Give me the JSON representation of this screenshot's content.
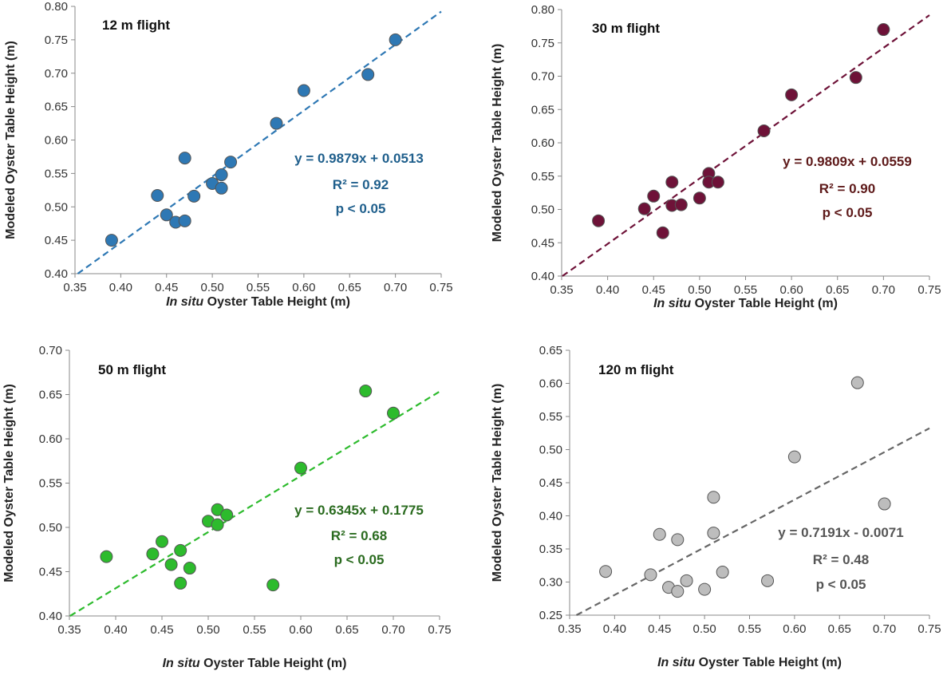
{
  "chart_data": [
    {
      "type": "scatter",
      "title": "12 m flight",
      "xlabel_italic": "In situ",
      "xlabel_rest": " Oyster Table Height (m)",
      "ylabel": "Modeled Oyster Table Height (m)",
      "xlim": [
        0.35,
        0.75
      ],
      "ylim": [
        0.4,
        0.8
      ],
      "xticks": [
        "0.35",
        "0.40",
        "0.45",
        "0.50",
        "0.55",
        "0.60",
        "0.65",
        "0.70",
        "0.75"
      ],
      "yticks": [
        "0.40",
        "0.45",
        "0.50",
        "0.55",
        "0.60",
        "0.65",
        "0.70",
        "0.75",
        "0.80"
      ],
      "color": "#2e78b4",
      "annotation_color": "#1f5f8c",
      "trend": {
        "slope": 0.9879,
        "intercept": 0.0513
      },
      "equation": "y = 0.9879x + 0.0513",
      "r2_label": "R² = 0.92",
      "p_label": "p < 0.05",
      "points": [
        {
          "x": 0.39,
          "y": 0.45
        },
        {
          "x": 0.44,
          "y": 0.517
        },
        {
          "x": 0.45,
          "y": 0.488
        },
        {
          "x": 0.46,
          "y": 0.477
        },
        {
          "x": 0.47,
          "y": 0.479
        },
        {
          "x": 0.47,
          "y": 0.573
        },
        {
          "x": 0.48,
          "y": 0.516
        },
        {
          "x": 0.5,
          "y": 0.535
        },
        {
          "x": 0.51,
          "y": 0.548
        },
        {
          "x": 0.51,
          "y": 0.528
        },
        {
          "x": 0.52,
          "y": 0.567
        },
        {
          "x": 0.57,
          "y": 0.625
        },
        {
          "x": 0.6,
          "y": 0.674
        },
        {
          "x": 0.67,
          "y": 0.698
        },
        {
          "x": 0.7,
          "y": 0.75
        }
      ]
    },
    {
      "type": "scatter",
      "title": "30 m flight",
      "xlabel_italic": "In situ",
      "xlabel_rest": " Oyster Table Height (m)",
      "ylabel": "Modeled Oyster Table Height (m)",
      "xlim": [
        0.35,
        0.75
      ],
      "ylim": [
        0.4,
        0.8
      ],
      "xticks": [
        "0.35",
        "0.40",
        "0.45",
        "0.50",
        "0.55",
        "0.60",
        "0.65",
        "0.70",
        "0.75"
      ],
      "yticks": [
        "0.40",
        "0.45",
        "0.50",
        "0.55",
        "0.60",
        "0.65",
        "0.70",
        "0.75",
        "0.80"
      ],
      "color": "#6e1238",
      "annotation_color": "#5e1a1a",
      "trend": {
        "slope": 0.9809,
        "intercept": 0.0559
      },
      "equation": "y = 0.9809x + 0.0559",
      "r2_label": "R² = 0.90",
      "p_label": "p < 0.05",
      "points": [
        {
          "x": 0.39,
          "y": 0.483
        },
        {
          "x": 0.44,
          "y": 0.501
        },
        {
          "x": 0.45,
          "y": 0.52
        },
        {
          "x": 0.46,
          "y": 0.465
        },
        {
          "x": 0.47,
          "y": 0.541
        },
        {
          "x": 0.47,
          "y": 0.506
        },
        {
          "x": 0.48,
          "y": 0.507
        },
        {
          "x": 0.5,
          "y": 0.517
        },
        {
          "x": 0.51,
          "y": 0.554
        },
        {
          "x": 0.51,
          "y": 0.541
        },
        {
          "x": 0.52,
          "y": 0.541
        },
        {
          "x": 0.57,
          "y": 0.618
        },
        {
          "x": 0.6,
          "y": 0.672
        },
        {
          "x": 0.67,
          "y": 0.698
        },
        {
          "x": 0.7,
          "y": 0.77
        }
      ]
    },
    {
      "type": "scatter",
      "title": "50 m flight",
      "xlabel_italic": "In situ",
      "xlabel_rest": " Oyster Table Height (m)",
      "ylabel": "Modeled Oyster Table Height (m)",
      "xlim": [
        0.35,
        0.75
      ],
      "ylim": [
        0.4,
        0.7
      ],
      "xticks": [
        "0.35",
        "0.40",
        "0.45",
        "0.50",
        "0.55",
        "0.60",
        "0.65",
        "0.70",
        "0.75"
      ],
      "yticks": [
        "0.40",
        "0.45",
        "0.50",
        "0.55",
        "0.60",
        "0.65",
        "0.70"
      ],
      "color": "#2dbb2d",
      "annotation_color": "#2a6b1f",
      "trend": {
        "slope": 0.6345,
        "intercept": 0.1775
      },
      "equation": "y = 0.6345x + 0.1775",
      "r2_label": "R² = 0.68",
      "p_label": "p < 0.05",
      "points": [
        {
          "x": 0.39,
          "y": 0.467
        },
        {
          "x": 0.44,
          "y": 0.47
        },
        {
          "x": 0.45,
          "y": 0.484
        },
        {
          "x": 0.46,
          "y": 0.458
        },
        {
          "x": 0.47,
          "y": 0.474
        },
        {
          "x": 0.47,
          "y": 0.437
        },
        {
          "x": 0.48,
          "y": 0.454
        },
        {
          "x": 0.5,
          "y": 0.507
        },
        {
          "x": 0.51,
          "y": 0.52
        },
        {
          "x": 0.51,
          "y": 0.503
        },
        {
          "x": 0.52,
          "y": 0.514
        },
        {
          "x": 0.57,
          "y": 0.435
        },
        {
          "x": 0.6,
          "y": 0.567
        },
        {
          "x": 0.67,
          "y": 0.654
        },
        {
          "x": 0.7,
          "y": 0.629
        }
      ]
    },
    {
      "type": "scatter",
      "title": "120 m flight",
      "xlabel_italic": "In situ",
      "xlabel_rest": " Oyster Table Height (m)",
      "ylabel": "Modeled Oyster Table Height (m)",
      "xlim": [
        0.35,
        0.75
      ],
      "ylim": [
        0.25,
        0.65
      ],
      "xticks": [
        "0.35",
        "0.40",
        "0.45",
        "0.50",
        "0.55",
        "0.60",
        "0.65",
        "0.70",
        "0.75"
      ],
      "yticks": [
        "0.25",
        "0.30",
        "0.35",
        "0.40",
        "0.45",
        "0.50",
        "0.55",
        "0.60",
        "0.65"
      ],
      "color": "#bdbdbd",
      "annotation_color": "#555555",
      "trend": {
        "slope": 0.7191,
        "intercept": -0.0071
      },
      "equation": "y = 0.7191x - 0.0071",
      "r2_label": "R² = 0.48",
      "p_label": "p < 0.05",
      "points": [
        {
          "x": 0.39,
          "y": 0.316
        },
        {
          "x": 0.44,
          "y": 0.311
        },
        {
          "x": 0.45,
          "y": 0.372
        },
        {
          "x": 0.46,
          "y": 0.292
        },
        {
          "x": 0.47,
          "y": 0.364
        },
        {
          "x": 0.47,
          "y": 0.286
        },
        {
          "x": 0.48,
          "y": 0.302
        },
        {
          "x": 0.5,
          "y": 0.289
        },
        {
          "x": 0.51,
          "y": 0.428
        },
        {
          "x": 0.51,
          "y": 0.374
        },
        {
          "x": 0.52,
          "y": 0.315
        },
        {
          "x": 0.57,
          "y": 0.302
        },
        {
          "x": 0.6,
          "y": 0.489
        },
        {
          "x": 0.67,
          "y": 0.601
        },
        {
          "x": 0.7,
          "y": 0.418
        }
      ]
    }
  ]
}
